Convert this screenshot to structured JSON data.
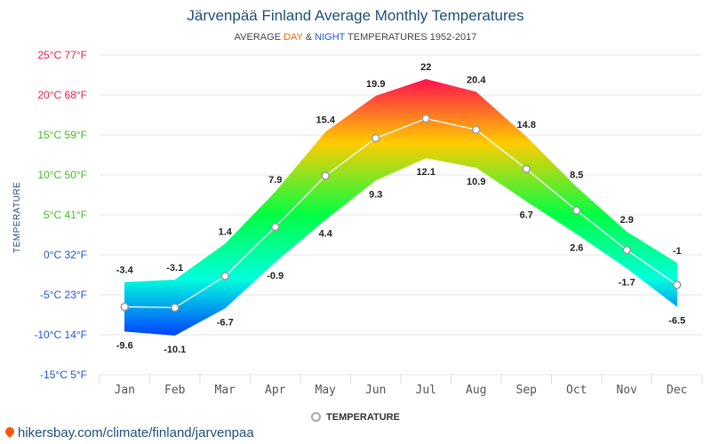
{
  "header": {
    "title": "Järvenpää Finland Average Monthly Temperatures",
    "subtitle_prefix": "AVERAGE ",
    "subtitle_day": "DAY",
    "subtitle_and": " & ",
    "subtitle_night": "NIGHT",
    "subtitle_suffix": " TEMPERATURES 1952-2017"
  },
  "legend": {
    "label": "TEMPERATURE"
  },
  "source": {
    "text": "hikersbay.com/climate/finland/jarvenpaa"
  },
  "chart_data": {
    "type": "area",
    "title": "Järvenpää Finland Average Monthly Temperatures",
    "subtitle": "AVERAGE DAY & NIGHT TEMPERATURES 1952-2017",
    "ylabel": "TEMPERATURE",
    "xlabel": "",
    "categories": [
      "Jan",
      "Feb",
      "Mar",
      "Apr",
      "May",
      "Jun",
      "Jul",
      "Aug",
      "Sep",
      "Oct",
      "Nov",
      "Dec"
    ],
    "ylim": [
      -15,
      25
    ],
    "y_ticks": [
      {
        "value": 25,
        "label": "25°C 77°F",
        "color": "#e8204a"
      },
      {
        "value": 20,
        "label": "20°C 68°F",
        "color": "#e8204a"
      },
      {
        "value": 15,
        "label": "15°C 59°F",
        "color": "#44bb22"
      },
      {
        "value": 10,
        "label": "10°C 50°F",
        "color": "#44bb22"
      },
      {
        "value": 5,
        "label": "5°C 41°F",
        "color": "#44bb22"
      },
      {
        "value": 0,
        "label": "0°C 32°F",
        "color": "#2255dd"
      },
      {
        "value": -5,
        "label": "-5°C 23°F",
        "color": "#2255dd"
      },
      {
        "value": -10,
        "label": "-10°C 14°F",
        "color": "#2255dd"
      },
      {
        "value": -15,
        "label": "-15°C 5°F",
        "color": "#2255dd"
      }
    ],
    "series": [
      {
        "name": "DAY",
        "values": [
          -3.4,
          -3.1,
          1.4,
          7.9,
          15.4,
          19.9,
          22,
          20.4,
          14.8,
          8.5,
          2.9,
          -1
        ]
      },
      {
        "name": "NIGHT",
        "values": [
          -9.6,
          -10.1,
          -6.7,
          -0.9,
          4.4,
          9.3,
          12.1,
          10.9,
          6.7,
          2.6,
          -1.7,
          -6.5
        ]
      },
      {
        "name": "TEMPERATURE",
        "values": [
          -6.5,
          -6.6,
          -2.65,
          3.5,
          9.9,
          14.6,
          17.05,
          15.65,
          10.75,
          5.55,
          0.6,
          -3.75
        ]
      }
    ],
    "value_labels": {
      "day": [
        "-3.4",
        "-3.1",
        "1.4",
        "7.9",
        "15.4",
        "19.9",
        "22",
        "20.4",
        "14.8",
        "8.5",
        "2.9",
        "-1"
      ],
      "night": [
        "-9.6",
        "-10.1",
        "-6.7",
        "-0.9",
        "4.4",
        "9.3",
        "12.1",
        "10.9",
        "6.7",
        "2.6",
        "-1.7",
        "-6.5"
      ]
    },
    "gradient_colors": {
      "hot": "#ff1150",
      "warm": "#ffcc00",
      "mild": "#00ff44",
      "cool": "#00ffdd",
      "cold": "#0044ff"
    },
    "mean_line_color": "#ffffff",
    "marker_stroke": "#999999",
    "grid": true,
    "legend_position": "bottom"
  }
}
